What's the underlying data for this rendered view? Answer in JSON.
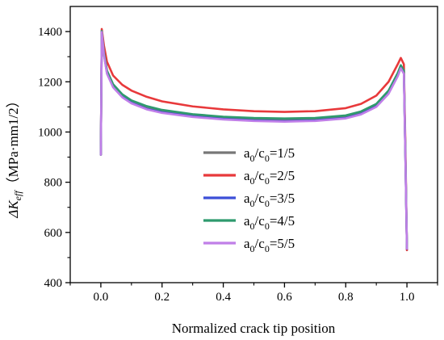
{
  "chart_data": {
    "type": "line",
    "xlabel": "Normalized crack tip position",
    "ylabel": {
      "delta": "ΔK",
      "subscript": "eff",
      "unit": "（MPa·mm1/2）"
    },
    "xlim": [
      -0.1,
      1.1
    ],
    "ylim": [
      400,
      1500
    ],
    "x_ticks": [
      "0.0",
      "0.2",
      "0.4",
      "0.6",
      "0.8",
      "1.0"
    ],
    "x_tick_values": [
      0.0,
      0.2,
      0.4,
      0.6,
      0.8,
      1.0
    ],
    "y_ticks": [
      "400",
      "600",
      "800",
      "1000",
      "1200",
      "1400"
    ],
    "y_tick_values": [
      400,
      600,
      800,
      1000,
      1200,
      1400
    ],
    "grid": false,
    "legend_position": "center-right",
    "x": [
      0.0,
      0.003,
      0.01,
      0.02,
      0.04,
      0.07,
      0.1,
      0.15,
      0.2,
      0.3,
      0.4,
      0.5,
      0.6,
      0.7,
      0.8,
      0.85,
      0.9,
      0.94,
      0.97,
      0.98,
      0.99,
      0.995,
      1.0
    ],
    "series": [
      {
        "name": "a0/c0=1/5",
        "label": {
          "a": "a",
          "s1": "0",
          "mid": "/c",
          "s2": "0",
          "tail": "=1/5"
        },
        "color": "#777777",
        "values": [
          910,
          1405,
          1320,
          1245,
          1190,
          1150,
          1125,
          1100,
          1085,
          1068,
          1058,
          1053,
          1050,
          1052,
          1062,
          1078,
          1108,
          1160,
          1230,
          1262,
          1240,
          900,
          530
        ]
      },
      {
        "name": "a0/c0=2/5",
        "label": {
          "a": "a",
          "s1": "0",
          "mid": "/c",
          "s2": "0",
          "tail": "=2/5"
        },
        "color": "#e8393b",
        "values": [
          910,
          1410,
          1345,
          1280,
          1225,
          1188,
          1165,
          1140,
          1122,
          1102,
          1090,
          1083,
          1080,
          1083,
          1095,
          1112,
          1145,
          1200,
          1270,
          1295,
          1270,
          940,
          530
        ]
      },
      {
        "name": "a0/c0=3/5",
        "label": {
          "a": "a",
          "s1": "0",
          "mid": "/c",
          "s2": "0",
          "tail": "=3/5"
        },
        "color": "#3c4fd8",
        "values": [
          910,
          1400,
          1310,
          1235,
          1180,
          1140,
          1116,
          1092,
          1078,
          1062,
          1052,
          1046,
          1043,
          1046,
          1056,
          1072,
          1102,
          1155,
          1225,
          1258,
          1236,
          895,
          535
        ]
      },
      {
        "name": "a0/c0=4/5",
        "label": {
          "a": "a",
          "s1": "0",
          "mid": "/c",
          "s2": "0",
          "tail": "=4/5"
        },
        "color": "#2e9a6e",
        "values": [
          910,
          1402,
          1318,
          1243,
          1190,
          1150,
          1126,
          1103,
          1088,
          1071,
          1061,
          1056,
          1054,
          1056,
          1066,
          1082,
          1112,
          1165,
          1235,
          1266,
          1245,
          905,
          538
        ]
      },
      {
        "name": "a0/c0=5/5",
        "label": {
          "a": "a",
          "s1": "0",
          "mid": "/c",
          "s2": "0",
          "tail": "=5/5"
        },
        "color": "#c07fe8",
        "values": [
          910,
          1398,
          1308,
          1232,
          1178,
          1138,
          1114,
          1090,
          1076,
          1060,
          1050,
          1044,
          1041,
          1044,
          1054,
          1070,
          1100,
          1152,
          1222,
          1254,
          1232,
          892,
          536
        ]
      }
    ]
  }
}
